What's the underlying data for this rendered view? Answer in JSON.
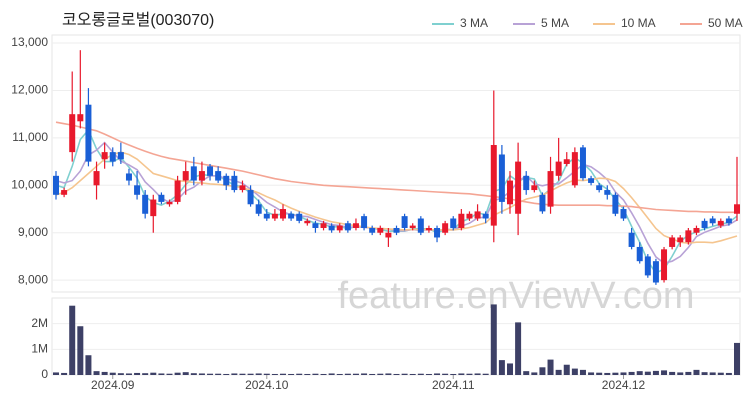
{
  "chart_data": {
    "type": "candlestick",
    "title": "코오롱글로벌(003070)",
    "watermark": "feature.enViewV.com",
    "legend": "top-right",
    "grid": true,
    "up_color": "#e8192c",
    "down_color": "#1a5fd6",
    "categories": [
      null,
      null,
      null,
      null,
      null,
      null,
      null,
      "2024.09",
      null,
      null,
      null,
      null,
      null,
      null,
      null,
      null,
      null,
      null,
      null,
      null,
      null,
      null,
      null,
      null,
      null,
      null,
      "2024.10",
      null,
      null,
      null,
      null,
      null,
      null,
      null,
      null,
      null,
      null,
      null,
      null,
      null,
      null,
      null,
      null,
      null,
      null,
      null,
      null,
      null,
      null,
      "2024.11",
      null,
      null,
      null,
      null,
      null,
      null,
      null,
      null,
      null,
      null,
      null,
      null,
      null,
      null,
      null,
      null,
      null,
      null,
      null,
      null,
      "2024.12",
      null,
      null,
      null,
      null,
      null,
      null,
      null,
      null,
      null,
      null,
      null,
      null,
      null,
      null
    ],
    "open": [
      10200,
      9800,
      10700,
      11350,
      11700,
      10000,
      10550,
      10700,
      10700,
      10250,
      10000,
      9800,
      9350,
      9800,
      9600,
      9650,
      10100,
      10400,
      10100,
      10400,
      10300,
      10200,
      10200,
      9900,
      9900,
      9600,
      9400,
      9300,
      9300,
      9400,
      9400,
      9200,
      9200,
      9100,
      9150,
      9050,
      9200,
      9100,
      9350,
      9100,
      9000,
      8900,
      9100,
      9350,
      9100,
      9300,
      9050,
      9100,
      9000,
      9300,
      9100,
      9300,
      9300,
      9400,
      9150,
      10650,
      9600,
      9400,
      10200,
      9900,
      9800,
      9550,
      10200,
      10450,
      10000,
      10800,
      10150,
      10000,
      9900,
      9800,
      9500,
      9000,
      8700,
      8500,
      8400,
      8000,
      8700,
      8800,
      8800,
      9000,
      9250,
      9300,
      9150,
      9300,
      9400
    ],
    "high": [
      10300,
      9950,
      12400,
      12850,
      12050,
      10500,
      10900,
      10800,
      10900,
      10350,
      10300,
      9900,
      9800,
      9850,
      9700,
      10200,
      10500,
      10600,
      10500,
      10450,
      10400,
      10250,
      10300,
      10100,
      10000,
      9700,
      9500,
      9500,
      9600,
      9450,
      9450,
      9300,
      9250,
      9250,
      9200,
      9200,
      9250,
      9300,
      9400,
      9150,
      9150,
      9100,
      9150,
      9400,
      9200,
      9350,
      9150,
      9150,
      9250,
      9350,
      9500,
      9450,
      9600,
      9450,
      12000,
      10850,
      10300,
      10900,
      10300,
      10100,
      9850,
      10600,
      11000,
      10700,
      10800,
      10850,
      10200,
      10050,
      10000,
      9850,
      9550,
      9100,
      8800,
      8550,
      8450,
      8700,
      8950,
      8950,
      9100,
      9150,
      9300,
      9350,
      9300,
      9350,
      10600
    ],
    "low": [
      9700,
      9750,
      10500,
      11200,
      10400,
      9700,
      10350,
      10400,
      10450,
      10000,
      9700,
      9300,
      9000,
      9600,
      9550,
      9600,
      9800,
      10000,
      10000,
      10100,
      10050,
      9900,
      9850,
      9850,
      9550,
      9350,
      9250,
      9250,
      9250,
      9250,
      9200,
      9150,
      9000,
      9050,
      9000,
      9000,
      9000,
      9050,
      9050,
      8950,
      8950,
      8700,
      8950,
      9050,
      9050,
      8950,
      9000,
      8800,
      8950,
      9050,
      9050,
      9250,
      9250,
      9200,
      8800,
      9400,
      9400,
      8950,
      9800,
      9850,
      9400,
      9400,
      10100,
      10400,
      9950,
      10100,
      10000,
      9850,
      9700,
      9350,
      9250,
      8650,
      8350,
      8050,
      7900,
      7950,
      8650,
      8700,
      8750,
      8950,
      9050,
      9150,
      9100,
      9150,
      9250
    ],
    "close": [
      9800,
      9900,
      11500,
      11500,
      10500,
      10300,
      10700,
      10500,
      10550,
      10100,
      9800,
      9400,
      9700,
      9650,
      9650,
      10100,
      10300,
      10100,
      10300,
      10200,
      10100,
      10000,
      9900,
      10000,
      9600,
      9400,
      9300,
      9400,
      9500,
      9300,
      9250,
      9250,
      9100,
      9200,
      9050,
      9150,
      9050,
      9200,
      9100,
      9000,
      9100,
      9000,
      9000,
      9100,
      9150,
      9000,
      9100,
      8900,
      9200,
      9100,
      9400,
      9400,
      9450,
      9300,
      10850,
      9650,
      10100,
      10500,
      9900,
      10000,
      9450,
      10300,
      10500,
      10550,
      10700,
      10150,
      10050,
      9900,
      9800,
      9400,
      9300,
      8700,
      8400,
      8100,
      7950,
      8650,
      8900,
      8900,
      9050,
      9100,
      9100,
      9200,
      9250,
      9200,
      9600
    ],
    "ylim": [
      7750,
      13170
    ],
    "yticks": [
      {
        "value": 8000,
        "label": "8,000"
      },
      {
        "value": 9000,
        "label": "9,000"
      },
      {
        "value": 10000,
        "label": "10,000"
      },
      {
        "value": 11000,
        "label": "11,000"
      },
      {
        "value": 12000,
        "label": "12,000"
      },
      {
        "value": 13000,
        "label": "13,000"
      }
    ],
    "series": [
      {
        "name": "3 MA",
        "color": "#7fd0d0",
        "values": [
          10000,
          9950,
          10400,
          10967,
          11167,
          10767,
          10500,
          10500,
          10583,
          10383,
          10150,
          9767,
          9633,
          9583,
          9667,
          9800,
          10017,
          10167,
          10233,
          10200,
          10200,
          10100,
          10000,
          9967,
          9833,
          9667,
          9433,
          9367,
          9400,
          9400,
          9350,
          9267,
          9200,
          9183,
          9117,
          9133,
          9083,
          9133,
          9117,
          9100,
          9067,
          9033,
          9033,
          9033,
          9083,
          9083,
          9083,
          9000,
          9067,
          9067,
          9233,
          9300,
          9417,
          9383,
          9867,
          9933,
          10200,
          10083,
          10167,
          10133,
          9783,
          9917,
          10083,
          10450,
          10583,
          10467,
          10300,
          10033,
          9917,
          9700,
          9500,
          9133,
          8800,
          8400,
          8150,
          8233,
          8500,
          8817,
          8950,
          9017,
          9083,
          9133,
          9183,
          9217,
          9350
        ]
      },
      {
        "name": "5 MA",
        "color": "#b8a2d6",
        "values": [
          10100,
          10050,
          10100,
          10300,
          10640,
          10740,
          10900,
          10700,
          10510,
          10430,
          10330,
          10070,
          9910,
          9730,
          9640,
          9700,
          9880,
          9960,
          10090,
          10200,
          10200,
          10140,
          10100,
          10040,
          9920,
          9780,
          9640,
          9540,
          9440,
          9380,
          9350,
          9340,
          9280,
          9220,
          9170,
          9150,
          9110,
          9130,
          9110,
          9100,
          9090,
          9080,
          9040,
          9040,
          9070,
          9050,
          9070,
          9050,
          9070,
          9060,
          9140,
          9200,
          9310,
          9330,
          9680,
          9730,
          9870,
          10080,
          10200,
          10030,
          9990,
          10030,
          10030,
          10160,
          10300,
          10440,
          10390,
          10270,
          10120,
          9860,
          9690,
          9420,
          9120,
          8780,
          8490,
          8360,
          8400,
          8500,
          8690,
          8920,
          9010,
          9070,
          9140,
          9170,
          9270
        ]
      },
      {
        "name": "10 MA",
        "color": "#f5c58f",
        "values": [
          9800,
          9850,
          9950,
          10100,
          10250,
          10400,
          10550,
          10650,
          10700,
          10650,
          10550,
          10400,
          10250,
          10200,
          10150,
          10100,
          10080,
          10060,
          10050,
          10030,
          10020,
          10000,
          9980,
          9950,
          9900,
          9840,
          9760,
          9690,
          9600,
          9520,
          9450,
          9390,
          9330,
          9280,
          9230,
          9200,
          9170,
          9150,
          9120,
          9100,
          9090,
          9080,
          9070,
          9060,
          9070,
          9070,
          9070,
          9060,
          9060,
          9060,
          9080,
          9110,
          9160,
          9210,
          9370,
          9450,
          9530,
          9630,
          9710,
          9750,
          9790,
          9880,
          9970,
          10050,
          10110,
          10100,
          10120,
          10150,
          10140,
          10080,
          9930,
          9740,
          9530,
          9310,
          9090,
          8940,
          8870,
          8800,
          8780,
          8800,
          8800,
          8790,
          8830,
          8880,
          8930
        ]
      },
      {
        "name": "50 MA",
        "color": "#f4a594",
        "values": [
          11330,
          11300,
          11270,
          11230,
          11190,
          11150,
          11080,
          11000,
          10920,
          10850,
          10780,
          10720,
          10660,
          10610,
          10570,
          10540,
          10510,
          10480,
          10450,
          10420,
          10390,
          10360,
          10330,
          10300,
          10260,
          10220,
          10180,
          10140,
          10110,
          10080,
          10060,
          10040,
          10020,
          10000,
          9990,
          9980,
          9970,
          9960,
          9950,
          9940,
          9930,
          9920,
          9910,
          9900,
          9890,
          9880,
          9870,
          9860,
          9850,
          9840,
          9830,
          9820,
          9800,
          9780,
          9760,
          9740,
          9710,
          9680,
          9650,
          9620,
          9600,
          9590,
          9580,
          9580,
          9580,
          9580,
          9580,
          9580,
          9570,
          9570,
          9560,
          9550,
          9530,
          9510,
          9490,
          9480,
          9470,
          9460,
          9450,
          9450,
          9440,
          9440,
          9430,
          9430,
          9430
        ]
      }
    ],
    "volume": {
      "color": "#3d4066",
      "ylim": [
        0,
        3000000
      ],
      "yticks": [
        0,
        {
          "value": 1000000,
          "label": "1M"
        },
        {
          "value": 2000000,
          "label": "2M"
        }
      ],
      "values": [
        100000,
        80000,
        2700000,
        1900000,
        770000,
        150000,
        120000,
        90000,
        70000,
        60000,
        80000,
        70000,
        90000,
        60000,
        50000,
        90000,
        110000,
        70000,
        60000,
        50000,
        50000,
        40000,
        60000,
        50000,
        50000,
        60000,
        50000,
        40000,
        50000,
        40000,
        50000,
        40000,
        50000,
        40000,
        60000,
        40000,
        50000,
        50000,
        60000,
        40000,
        50000,
        60000,
        40000,
        50000,
        40000,
        50000,
        40000,
        60000,
        50000,
        40000,
        60000,
        50000,
        60000,
        50000,
        2750000,
        580000,
        450000,
        2050000,
        150000,
        100000,
        300000,
        600000,
        200000,
        400000,
        250000,
        200000,
        100000,
        90000,
        80000,
        90000,
        100000,
        120000,
        150000,
        130000,
        160000,
        180000,
        120000,
        100000,
        120000,
        200000,
        110000,
        100000,
        90000,
        80000,
        1250000
      ]
    }
  }
}
